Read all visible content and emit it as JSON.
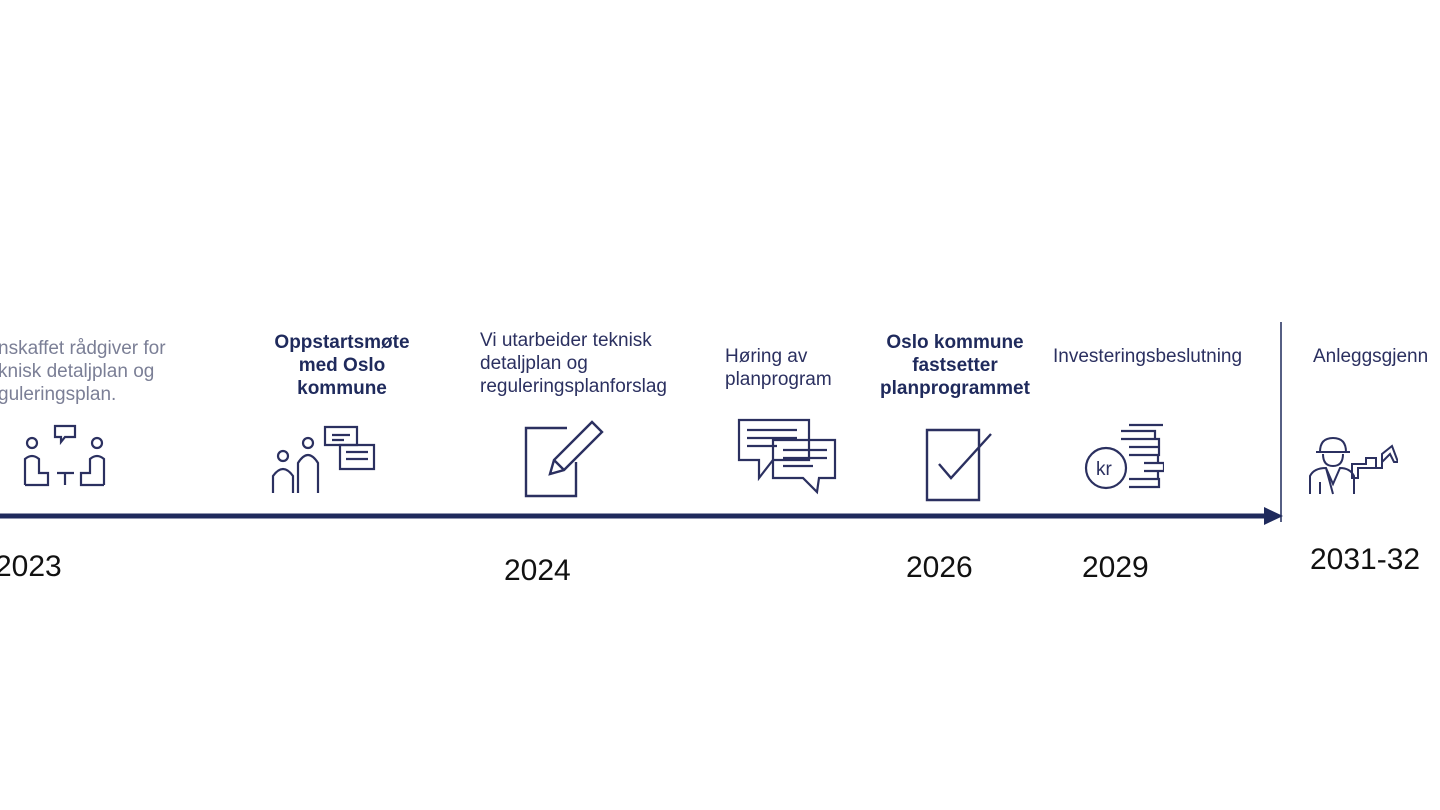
{
  "colors": {
    "line": "#1f2a5c",
    "text": "#2b3060",
    "muted": "#7b7f96"
  },
  "milestones": [
    {
      "text": "nskaffet rådgiver for\nknisk detaljplan og\nguleringsplan.",
      "year": "2023",
      "icon": "meeting-icon"
    },
    {
      "text": "Oppstartsmøte\nmed Oslo\nkommune",
      "icon": "people-discussion-icon"
    },
    {
      "text": "Vi utarbeider teknisk\ndetaljplan og\nreguleringsplanforslag",
      "year": "2024",
      "icon": "edit-document-icon"
    },
    {
      "text": "Høring av\nplanprogram",
      "icon": "speech-bubbles-icon"
    },
    {
      "text": "Oslo kommune\nfastsetter\nplanprogrammet",
      "year": "2026",
      "icon": "checkbox-icon"
    },
    {
      "text": "Investeringsbeslutning",
      "year": "2029",
      "icon": "kr-coins-icon",
      "coin_label": "kr"
    },
    {
      "text": "Anleggsgjenn",
      "year": "2031-32",
      "icon": "construction-worker-icon"
    }
  ]
}
